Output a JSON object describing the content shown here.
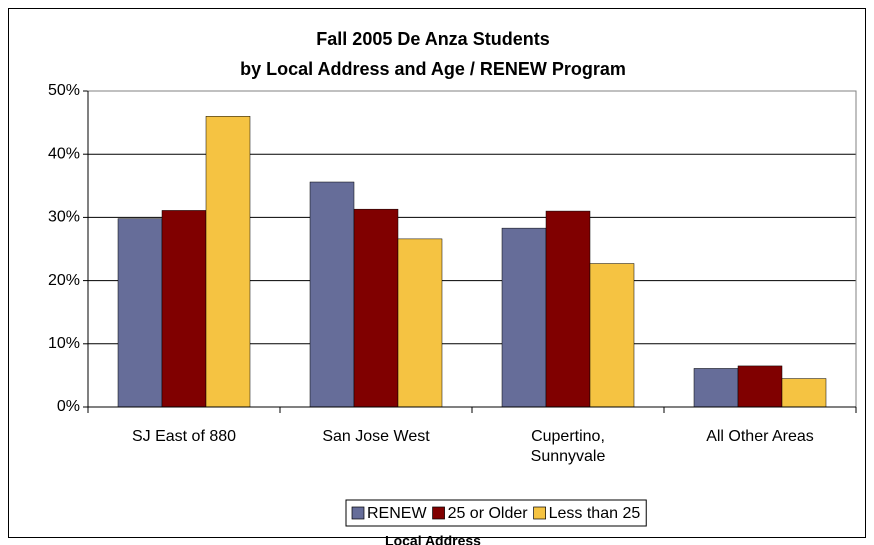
{
  "chart_data": {
    "type": "bar",
    "title": "Fall 2005 De Anza Students",
    "subtitle": "by Local Address and Age / RENEW Program",
    "x_label": "Local Address",
    "categories": [
      "SJ East of 880",
      "San Jose West",
      "Cupertino,\nSunnyvale",
      "All Other Areas"
    ],
    "series": [
      {
        "name": "RENEW",
        "color": "#666d99",
        "values": [
          29.8,
          35.6,
          28.3,
          6.1
        ]
      },
      {
        "name": "25 or Older",
        "color": "#800000",
        "values": [
          31.1,
          31.3,
          31.0,
          6.5
        ]
      },
      {
        "name": "Less than 25",
        "color": "#f5c342",
        "values": [
          46.0,
          26.6,
          22.7,
          4.5
        ]
      }
    ],
    "ylim": [
      0,
      50
    ],
    "yticks": [
      {
        "value": 0,
        "label": "0%"
      },
      {
        "value": 10,
        "label": "10%"
      },
      {
        "value": 20,
        "label": "20%"
      },
      {
        "value": 30,
        "label": "30%"
      },
      {
        "value": 40,
        "label": "40%"
      },
      {
        "value": 50,
        "label": "50%"
      }
    ],
    "grid": true,
    "legend": "bottom"
  }
}
